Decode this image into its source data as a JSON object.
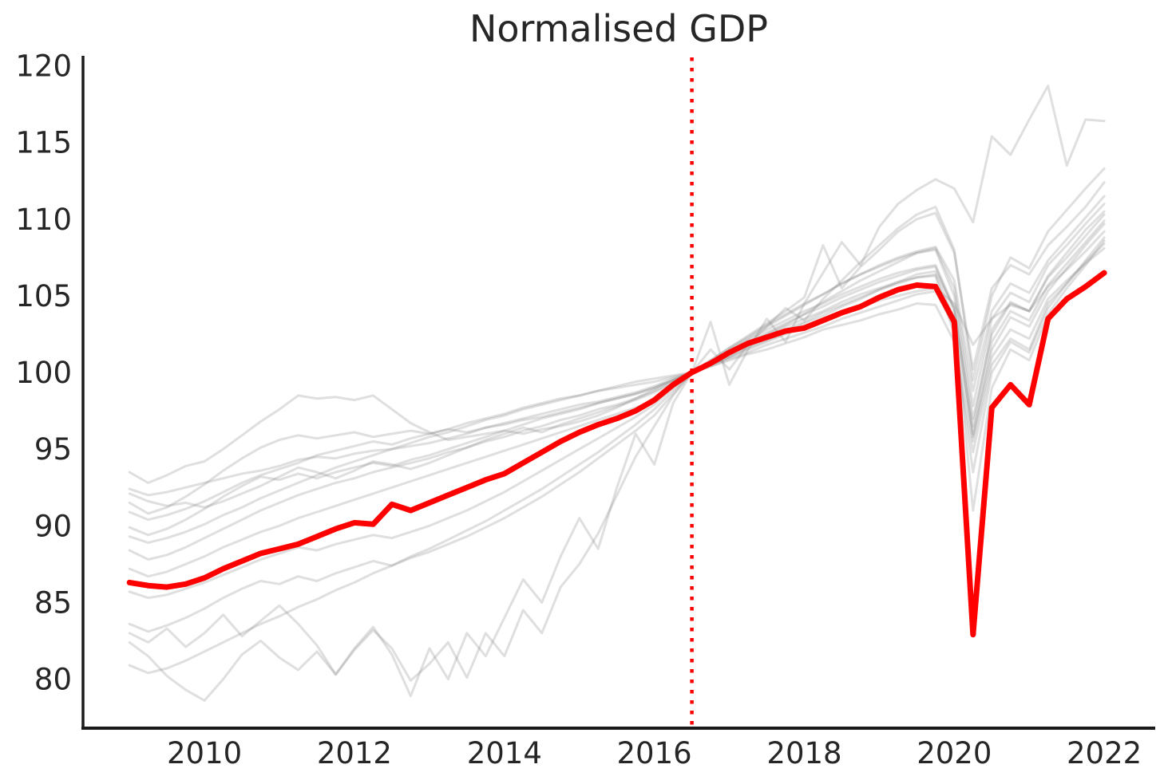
{
  "chart_data": {
    "type": "line",
    "title": "Normalised GDP",
    "xlabel": "",
    "ylabel": "",
    "x_axis": {
      "tick_values": [
        2010,
        2012,
        2014,
        2016,
        2018,
        2020,
        2022
      ],
      "tick_labels": [
        "2010",
        "2012",
        "2014",
        "2016",
        "2018",
        "2020",
        "2022"
      ]
    },
    "y_axis": {
      "tick_values": [
        80,
        85,
        90,
        95,
        100,
        105,
        110,
        115,
        120
      ],
      "tick_labels": [
        "80",
        "85",
        "90",
        "95",
        "100",
        "105",
        "110",
        "115",
        "120"
      ]
    },
    "x_domain": [
      2008.37,
      2022.68
    ],
    "y_domain": [
      76.8,
      120.55
    ],
    "x_start": 2009.0,
    "x_step": 0.25,
    "frequency": "quarterly",
    "grid": false,
    "legend": "none",
    "reference_line": {
      "orientation": "vertical",
      "x": 2016.5,
      "style": "dotted",
      "color": "#ff0000"
    },
    "normalisation_note": "all series = 100 at 2016.5",
    "colors": {
      "highlight": "#ff0000",
      "background_line": "rgba(128,128,128,0.25)",
      "axis": "#1a1a1a",
      "text": "#262626"
    },
    "highlight_series": {
      "values": [
        86.3,
        86.1,
        86.0,
        86.2,
        86.6,
        87.2,
        87.7,
        88.2,
        88.5,
        88.8,
        89.3,
        89.8,
        90.2,
        90.1,
        91.4,
        91.0,
        91.5,
        92.0,
        92.5,
        93.0,
        93.4,
        94.1,
        94.8,
        95.5,
        96.1,
        96.6,
        97.0,
        97.5,
        98.2,
        99.2,
        100.0,
        100.6,
        101.3,
        101.9,
        102.3,
        102.7,
        102.9,
        103.4,
        103.9,
        104.3,
        104.9,
        105.4,
        105.7,
        105.6,
        103.3,
        82.9,
        97.7,
        99.2,
        97.9,
        103.5,
        104.8,
        105.6,
        106.5
      ]
    },
    "background_series": [
      {
        "values": [
          93.5,
          92.8,
          93.3,
          93.9,
          94.2,
          95.0,
          95.9,
          96.8,
          97.6,
          98.5,
          98.3,
          98.4,
          98.2,
          98.5,
          97.6,
          96.7,
          96.1,
          95.6,
          95.8,
          96.0,
          96.2,
          96.0,
          96.3,
          96.5,
          96.8,
          97.2,
          97.7,
          98.3,
          98.9,
          99.5,
          100.0,
          100.4,
          100.8,
          101.2,
          101.5,
          101.9,
          102.3,
          102.8,
          103.1,
          103.4,
          103.8,
          104.1,
          104.5,
          104.4,
          102.0,
          94.8,
          100.5,
          102.2,
          101.5,
          104.5,
          105.8,
          107.2,
          108.4
        ]
      },
      {
        "values": [
          92.4,
          92.0,
          92.2,
          92.5,
          92.8,
          93.1,
          93.4,
          93.6,
          93.9,
          94.3,
          94.5,
          94.4,
          94.7,
          94.9,
          95.0,
          95.2,
          95.4,
          95.7,
          96.0,
          96.4,
          96.7,
          97.0,
          97.3,
          97.6,
          97.9,
          98.1,
          98.4,
          98.7,
          99.1,
          99.6,
          100.0,
          100.5,
          101.0,
          101.6,
          102.1,
          102.6,
          103.2,
          103.7,
          104.3,
          104.8,
          105.4,
          105.9,
          106.4,
          106.6,
          104.2,
          96.5,
          102.8,
          104.6,
          104.0,
          106.2,
          107.5,
          108.9,
          110.3
        ]
      },
      {
        "values": [
          92.1,
          91.6,
          91.3,
          91.5,
          91.2,
          91.6,
          92.1,
          92.6,
          93.2,
          93.8,
          93.5,
          93.1,
          93.6,
          94.2,
          94.0,
          93.7,
          94.1,
          94.6,
          95.1,
          95.6,
          96.0,
          96.4,
          96.1,
          96.6,
          97.0,
          97.4,
          97.8,
          98.2,
          98.7,
          99.3,
          100.0,
          100.6,
          101.2,
          101.8,
          102.5,
          103.1,
          103.8,
          104.6,
          105.3,
          106.0,
          106.6,
          107.2,
          107.8,
          108.1,
          105.5,
          97.8,
          103.5,
          105.2,
          104.6,
          107.0,
          108.3,
          109.7,
          111.0
        ]
      },
      {
        "values": [
          91.5,
          90.8,
          91.2,
          91.9,
          92.7,
          93.6,
          94.4,
          95.1,
          95.6,
          95.9,
          95.7,
          95.9,
          96.1,
          95.8,
          96.0,
          96.2,
          96.0,
          96.3,
          96.1,
          96.4,
          96.6,
          96.9,
          97.1,
          97.4,
          97.7,
          98.0,
          98.3,
          98.6,
          99.0,
          99.5,
          100.0,
          100.4,
          100.9,
          101.3,
          101.8,
          102.2,
          102.6,
          103.0,
          103.5,
          103.9,
          104.3,
          104.7,
          105.1,
          105.3,
          103.0,
          95.5,
          101.0,
          102.8,
          102.2,
          104.8,
          106.0,
          107.1,
          108.1
        ]
      },
      {
        "values": [
          90.9,
          90.4,
          90.7,
          91.1,
          91.6,
          92.2,
          92.8,
          93.3,
          93.7,
          94.1,
          94.6,
          94.9,
          95.2,
          95.5,
          95.3,
          95.7,
          96.0,
          96.3,
          96.7,
          97.0,
          97.3,
          97.7,
          98.0,
          98.3,
          98.5,
          98.8,
          99.0,
          99.2,
          99.4,
          99.7,
          100.0,
          100.8,
          101.6,
          102.4,
          103.2,
          104.0,
          104.9,
          108.3,
          105.5,
          106.9,
          108.0,
          109.2,
          110.0,
          110.4,
          107.8,
          100.2,
          105.5,
          107.0,
          106.4,
          108.3,
          109.5,
          110.8,
          112.4
        ]
      },
      {
        "values": [
          89.9,
          89.4,
          89.8,
          90.4,
          91.1,
          91.9,
          92.6,
          93.2,
          93.0,
          93.4,
          93.1,
          93.5,
          93.8,
          94.1,
          93.9,
          94.3,
          94.6,
          95.0,
          95.4,
          95.8,
          96.2,
          96.6,
          97.0,
          97.3,
          97.6,
          98.0,
          98.3,
          98.6,
          99.0,
          99.5,
          100.0,
          100.5,
          101.1,
          101.7,
          102.2,
          102.8,
          103.3,
          103.9,
          104.4,
          104.9,
          105.4,
          105.8,
          106.2,
          106.4,
          103.5,
          91.0,
          99.0,
          101.5,
          100.8,
          103.8,
          105.5,
          107.0,
          108.6
        ]
      },
      {
        "values": [
          89.3,
          88.9,
          89.2,
          89.6,
          90.1,
          90.7,
          91.2,
          91.8,
          92.3,
          92.8,
          93.3,
          93.8,
          94.2,
          94.6,
          95.0,
          95.4,
          95.8,
          96.1,
          96.5,
          96.9,
          97.2,
          97.6,
          97.9,
          98.2,
          98.5,
          98.8,
          99.1,
          99.4,
          99.6,
          99.8,
          100.0,
          100.7,
          101.5,
          102.2,
          103.0,
          103.7,
          104.4,
          105.1,
          105.8,
          106.4,
          107.0,
          107.5,
          107.9,
          108.2,
          106.0,
          98.8,
          104.0,
          105.8,
          105.2,
          107.3,
          108.7,
          110.1,
          111.5
        ]
      },
      {
        "values": [
          88.4,
          87.8,
          88.1,
          88.6,
          89.2,
          89.8,
          90.4,
          91.0,
          91.5,
          92.0,
          92.4,
          92.8,
          93.1,
          93.5,
          93.8,
          94.1,
          94.4,
          94.8,
          95.1,
          95.5,
          95.8,
          96.2,
          96.5,
          96.9,
          97.2,
          97.6,
          97.9,
          98.3,
          98.8,
          99.4,
          100.0,
          100.5,
          101.0,
          101.5,
          102.0,
          102.5,
          103.0,
          103.4,
          103.9,
          104.3,
          104.7,
          105.0,
          105.3,
          105.5,
          104.5,
          101.8,
          103.5,
          104.4,
          104.0,
          105.6,
          106.7,
          107.9,
          109.2
        ]
      },
      {
        "values": [
          87.2,
          86.7,
          87.0,
          87.5,
          88.0,
          88.6,
          89.1,
          89.6,
          90.0,
          90.5,
          90.9,
          91.3,
          91.7,
          92.1,
          92.5,
          92.9,
          93.3,
          93.7,
          94.1,
          94.5,
          94.9,
          95.3,
          95.7,
          96.1,
          96.5,
          96.9,
          97.3,
          97.7,
          98.2,
          99.1,
          100.0,
          100.6,
          101.2,
          101.8,
          102.4,
          103.0,
          103.5,
          104.0,
          104.6,
          105.1,
          105.5,
          105.9,
          106.2,
          106.3,
          102.5,
          93.5,
          100.0,
          102.0,
          101.3,
          104.2,
          105.8,
          107.3,
          108.8
        ]
      },
      {
        "values": [
          85.7,
          85.3,
          85.5,
          85.9,
          86.3,
          86.8,
          87.3,
          87.8,
          88.2,
          88.6,
          88.4,
          88.8,
          89.1,
          89.4,
          89.2,
          89.6,
          90.0,
          90.5,
          91.0,
          91.6,
          92.2,
          92.9,
          93.6,
          94.3,
          95.0,
          95.7,
          96.4,
          97.1,
          97.9,
          99.0,
          100.0,
          100.6,
          101.3,
          101.9,
          102.6,
          103.2,
          103.8,
          104.3,
          104.9,
          105.4,
          105.9,
          106.3,
          106.7,
          106.9,
          104.0,
          96.0,
          102.0,
          104.0,
          103.4,
          105.7,
          107.1,
          108.5,
          109.9
        ]
      },
      {
        "values": [
          83.6,
          83.1,
          83.5,
          84.0,
          84.6,
          85.3,
          85.9,
          86.4,
          86.2,
          86.7,
          86.4,
          86.9,
          87.3,
          87.7,
          87.4,
          87.9,
          88.3,
          88.8,
          89.3,
          89.9,
          90.5,
          91.2,
          91.9,
          92.7,
          93.5,
          94.4,
          95.3,
          96.2,
          97.2,
          98.6,
          100.0,
          100.7,
          101.4,
          102.1,
          102.8,
          103.4,
          104.0,
          104.5,
          105.1,
          105.6,
          106.1,
          106.5,
          106.8,
          107.0,
          104.2,
          95.8,
          101.5,
          103.6,
          103.0,
          105.3,
          106.8,
          108.3,
          109.7
        ]
      },
      {
        "values": [
          82.4,
          81.5,
          80.2,
          79.3,
          78.6,
          80.0,
          81.6,
          82.5,
          81.4,
          80.6,
          81.8,
          80.3,
          81.9,
          83.2,
          82.0,
          79.9,
          81.0,
          82.4,
          80.1,
          83.0,
          81.5,
          84.5,
          83.0,
          86.0,
          87.5,
          89.5,
          92.0,
          94.5,
          96.5,
          98.5,
          100.0,
          101.5,
          100.2,
          101.8,
          103.0,
          104.2,
          103.4,
          104.8,
          106.0,
          107.2,
          108.3,
          109.4,
          110.3,
          110.8,
          108.0,
          99.5,
          105.0,
          107.5,
          106.8,
          109.2,
          110.6,
          112.0,
          113.3
        ]
      },
      {
        "values": [
          83.0,
          82.4,
          83.3,
          82.1,
          83.0,
          84.2,
          82.8,
          83.8,
          84.8,
          83.6,
          82.2,
          80.3,
          82.0,
          83.4,
          81.6,
          78.9,
          82.0,
          80.0,
          83.0,
          81.5,
          84.0,
          86.5,
          85.0,
          88.0,
          90.5,
          88.5,
          92.5,
          96.0,
          94.0,
          98.0,
          100.0,
          103.3,
          99.2,
          101.5,
          103.5,
          102.0,
          104.5,
          106.5,
          108.5,
          107.0,
          109.5,
          111.0,
          111.9,
          112.6,
          112.0,
          109.8,
          115.4,
          114.2,
          116.5,
          118.7,
          113.5,
          116.5,
          116.4
        ]
      },
      {
        "values": [
          80.9,
          80.4,
          80.7,
          81.2,
          81.8,
          82.4,
          83.0,
          83.6,
          84.1,
          84.7,
          85.2,
          85.8,
          86.3,
          86.9,
          87.4,
          88.0,
          88.5,
          89.1,
          89.7,
          90.3,
          91.0,
          91.7,
          92.4,
          93.2,
          94.0,
          94.8,
          95.7,
          96.6,
          97.6,
          98.8,
          100.0,
          100.8,
          101.6,
          102.3,
          103.1,
          103.8,
          104.5,
          105.1,
          105.8,
          106.4,
          106.9,
          107.4,
          107.8,
          108.0,
          105.0,
          97.0,
          102.5,
          104.5,
          104.0,
          106.3,
          107.8,
          109.3,
          110.5
        ]
      }
    ]
  }
}
